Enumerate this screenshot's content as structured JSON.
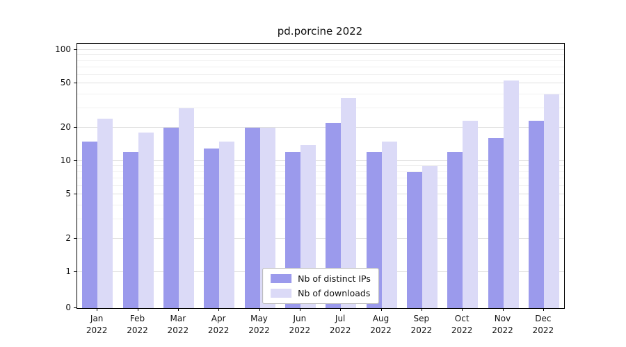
{
  "title": "pd.porcine 2022",
  "chart_data": {
    "type": "bar",
    "title": "pd.porcine 2022",
    "categories": [
      "Jan 2022",
      "Feb 2022",
      "Mar 2022",
      "Apr 2022",
      "May 2022",
      "Jun 2022",
      "Jul 2022",
      "Aug 2022",
      "Sep 2022",
      "Oct 2022",
      "Nov 2022",
      "Dec 2022"
    ],
    "series": [
      {
        "name": "Nb of distinct IPs",
        "color": "#9b9aec",
        "values": [
          15,
          12,
          20,
          13,
          20,
          12,
          22,
          12,
          8,
          12,
          16,
          23
        ]
      },
      {
        "name": "Nb of downloads",
        "color": "#dbdaf7",
        "values": [
          24,
          18,
          30,
          15,
          20,
          14,
          37,
          15,
          9,
          23,
          53,
          40
        ]
      }
    ],
    "yscale": "log-with-zero-baseline",
    "y_ticks": [
      0,
      1,
      2,
      5,
      10,
      20,
      50,
      100
    ],
    "y_minor_ticks": [
      3,
      4,
      6,
      7,
      8,
      9,
      30,
      40,
      60,
      70,
      80,
      90
    ],
    "ylim": [
      0,
      115
    ],
    "grid": "horizontal",
    "legend": {
      "position": "lower center inside",
      "entries": [
        "Nb of distinct IPs",
        "Nb of downloads"
      ]
    }
  }
}
